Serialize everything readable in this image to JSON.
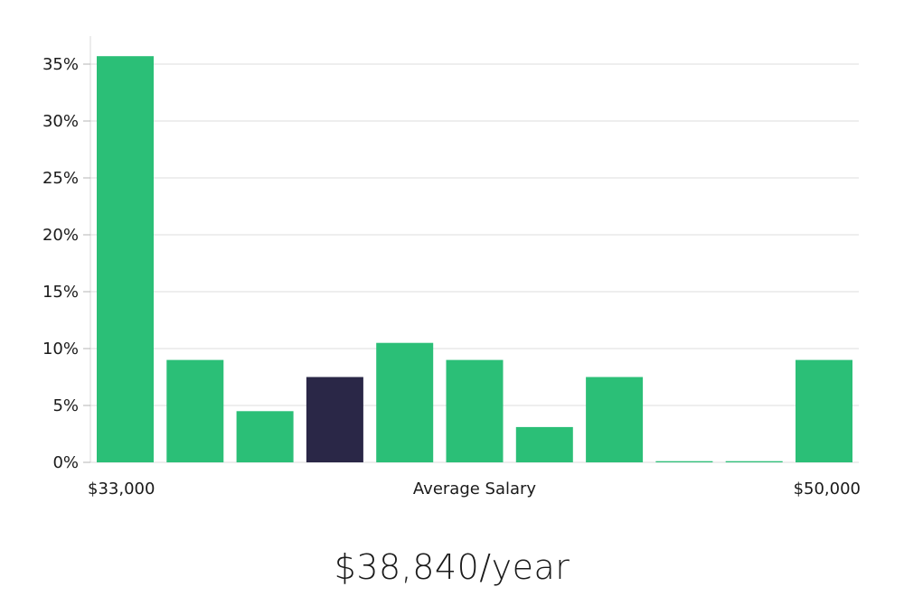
{
  "chart_data": {
    "type": "bar",
    "ylim": [
      0,
      37.5
    ],
    "y_ticks": [
      0,
      5,
      10,
      15,
      20,
      25,
      30,
      35
    ],
    "y_tick_suffix": "%",
    "values": [
      35.7,
      9.0,
      4.5,
      7.5,
      10.5,
      9.0,
      3.1,
      7.5,
      0.1,
      0.1,
      9.0
    ],
    "highlight_index": 3,
    "bar_color": "#2bbf77",
    "highlight_color": "#2a2747",
    "grid": true,
    "x_label_left": "$33,000",
    "x_label_center": "Average Salary",
    "x_label_right": "$50,000"
  },
  "summary": {
    "salary": "$38,840/year"
  }
}
